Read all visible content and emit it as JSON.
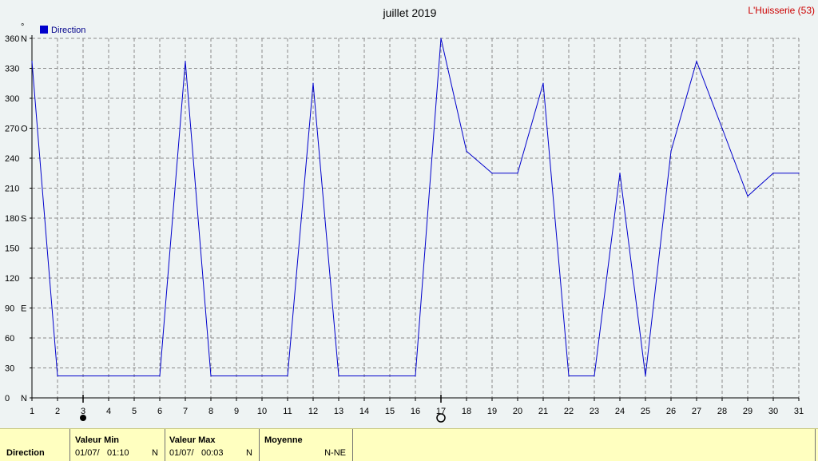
{
  "header": {
    "title": "juillet 2019",
    "station": "L'Huisserie (53)",
    "degree_mark": "°"
  },
  "chart_data": {
    "type": "line",
    "title": "juillet 2019",
    "legend": [
      "Direction"
    ],
    "legend_position": "top-left",
    "grid": true,
    "x": [
      1,
      2,
      3,
      4,
      5,
      6,
      7,
      8,
      9,
      10,
      11,
      12,
      13,
      14,
      15,
      16,
      17,
      18,
      19,
      20,
      21,
      22,
      23,
      24,
      25,
      26,
      27,
      28,
      29,
      30,
      31
    ],
    "xlim": [
      1,
      31
    ],
    "ylim": [
      0,
      360
    ],
    "yticks": [
      {
        "value": 0,
        "label": "0",
        "dir": "N"
      },
      {
        "value": 30,
        "label": "30",
        "dir": ""
      },
      {
        "value": 60,
        "label": "60",
        "dir": ""
      },
      {
        "value": 90,
        "label": "90",
        "dir": "E"
      },
      {
        "value": 120,
        "label": "120",
        "dir": ""
      },
      {
        "value": 150,
        "label": "150",
        "dir": ""
      },
      {
        "value": 180,
        "label": "180",
        "dir": "S"
      },
      {
        "value": 210,
        "label": "210",
        "dir": ""
      },
      {
        "value": 240,
        "label": "240",
        "dir": ""
      },
      {
        "value": 270,
        "label": "270",
        "dir": "O"
      },
      {
        "value": 300,
        "label": "300",
        "dir": ""
      },
      {
        "value": 330,
        "label": "330",
        "dir": ""
      },
      {
        "value": 360,
        "label": "360",
        "dir": "N"
      }
    ],
    "series": [
      {
        "name": "Direction",
        "color": "#0000cc",
        "values": [
          337,
          22,
          22,
          22,
          22,
          22,
          337,
          22,
          22,
          22,
          22,
          315,
          22,
          22,
          22,
          22,
          360,
          247,
          225,
          225,
          315,
          22,
          22,
          225,
          22,
          247,
          337,
          270,
          202,
          225,
          225
        ]
      }
    ],
    "markers": [
      {
        "x": 3,
        "kind": "filled"
      },
      {
        "x": 17,
        "kind": "hollow"
      }
    ]
  },
  "footer": {
    "row_label": "Direction",
    "min": {
      "label": "Valeur Min",
      "date": "01/07/",
      "time": "01:10",
      "dir": "N"
    },
    "max": {
      "label": "Valeur Max",
      "date": "01/07/",
      "time": "00:03",
      "dir": "N"
    },
    "avg": {
      "label": "Moyenne",
      "value": "N-NE"
    }
  }
}
